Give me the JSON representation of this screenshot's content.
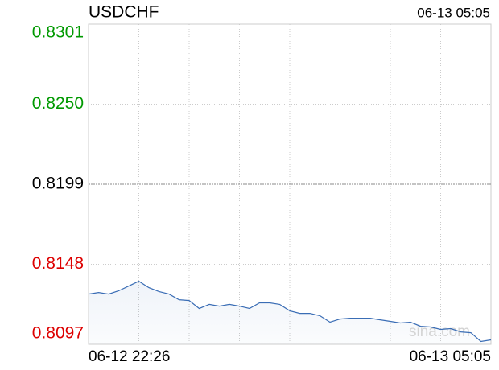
{
  "chart_data": {
    "type": "line",
    "title": "USDCHF",
    "updated": "06-13 05:05",
    "watermark": "sina.com",
    "categories": [
      "06-12 22:26",
      null,
      null,
      null,
      null,
      null,
      null,
      null,
      null,
      null,
      null,
      null,
      null,
      null,
      null,
      null,
      null,
      null,
      null,
      null,
      null,
      null,
      null,
      null,
      null,
      null,
      null,
      null,
      null,
      null,
      null,
      null,
      null,
      null,
      null,
      null,
      null,
      null,
      null,
      null,
      "06-13 05:05"
    ],
    "values": [
      0.8129,
      0.813,
      0.8129,
      0.81311,
      0.81341,
      0.81372,
      0.81331,
      0.81306,
      0.8129,
      0.81254,
      0.81249,
      0.81198,
      0.81224,
      0.81213,
      0.81224,
      0.81213,
      0.81198,
      0.81234,
      0.81234,
      0.81224,
      0.81183,
      0.81167,
      0.81167,
      0.81152,
      0.81111,
      0.81131,
      0.81136,
      0.81136,
      0.81136,
      0.81126,
      0.81116,
      0.81106,
      0.81111,
      0.81085,
      0.8108,
      0.81065,
      0.8107,
      0.81049,
      0.81044,
      0.80988,
      0.80998
    ],
    "color": "#3a6db5",
    "baseline": 0.8199,
    "above_color": "#009900",
    "below_color": "#dd0000",
    "baseline_color": "#000000",
    "ylim": [
      0.8097,
      0.8301
    ],
    "yticks": [
      0.8097,
      0.8148,
      0.8199,
      {
        "value": 0.825,
        "label": "0.8250"
      },
      0.8301
    ],
    "grid": true
  }
}
